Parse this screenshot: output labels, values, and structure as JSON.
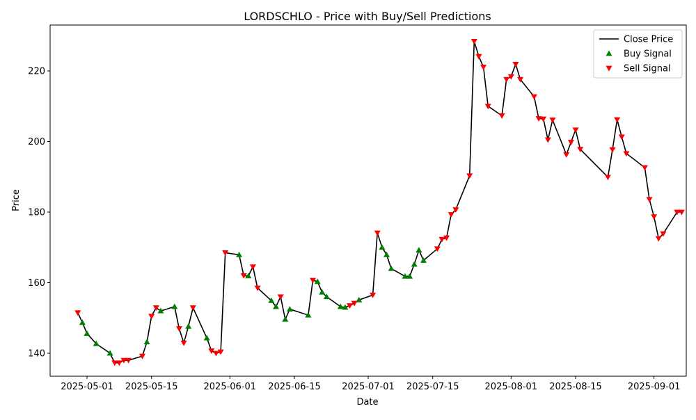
{
  "chart_data": {
    "type": "line",
    "title": "LORDSCHLO - Price with Buy/Sell Predictions",
    "xlabel": "Date",
    "ylabel": "Price",
    "xlim": [
      "2025-04-23",
      "2025-09-08"
    ],
    "ylim": [
      133.5,
      233
    ],
    "x_ticks": [
      "2025-05-01",
      "2025-05-15",
      "2025-06-01",
      "2025-06-15",
      "2025-07-01",
      "2025-07-15",
      "2025-08-01",
      "2025-08-15",
      "2025-09-01"
    ],
    "y_ticks": [
      140,
      160,
      180,
      200,
      220
    ],
    "grid": false,
    "legend_position": "top-right",
    "colors": {
      "close": "#000000",
      "buy": "#008000",
      "sell": "#ff0000"
    },
    "series": [
      {
        "name": "Close Price",
        "marker": "line",
        "x": [
          "2025-04-29",
          "2025-04-30",
          "2025-05-01",
          "2025-05-03",
          "2025-05-06",
          "2025-05-07",
          "2025-05-08",
          "2025-05-09",
          "2025-05-10",
          "2025-05-13",
          "2025-05-14",
          "2025-05-15",
          "2025-05-16",
          "2025-05-17",
          "2025-05-20",
          "2025-05-21",
          "2025-05-22",
          "2025-05-23",
          "2025-05-24",
          "2025-05-27",
          "2025-05-28",
          "2025-05-29",
          "2025-05-30",
          "2025-05-31",
          "2025-06-03",
          "2025-06-04",
          "2025-06-05",
          "2025-06-06",
          "2025-06-07",
          "2025-06-10",
          "2025-06-11",
          "2025-06-12",
          "2025-06-13",
          "2025-06-14",
          "2025-06-18",
          "2025-06-19",
          "2025-06-20",
          "2025-06-21",
          "2025-06-22",
          "2025-06-25",
          "2025-06-26",
          "2025-06-27",
          "2025-06-28",
          "2025-06-29",
          "2025-07-02",
          "2025-07-03",
          "2025-07-04",
          "2025-07-05",
          "2025-07-06",
          "2025-07-09",
          "2025-07-10",
          "2025-07-11",
          "2025-07-12",
          "2025-07-13",
          "2025-07-16",
          "2025-07-17",
          "2025-07-18",
          "2025-07-19",
          "2025-07-20",
          "2025-07-23",
          "2025-07-24",
          "2025-07-25",
          "2025-07-26",
          "2025-07-27",
          "2025-07-30",
          "2025-07-31",
          "2025-08-01",
          "2025-08-02",
          "2025-08-03",
          "2025-08-06",
          "2025-08-07",
          "2025-08-08",
          "2025-08-09",
          "2025-08-10",
          "2025-08-13",
          "2025-08-14",
          "2025-08-15",
          "2025-08-16",
          "2025-08-22",
          "2025-08-23",
          "2025-08-24",
          "2025-08-25",
          "2025-08-26",
          "2025-08-30",
          "2025-08-31",
          "2025-09-01",
          "2025-09-02",
          "2025-09-03",
          "2025-09-06",
          "2025-09-07"
        ],
        "y": [
          151.5,
          148.7,
          145.6,
          142.7,
          140.0,
          137.3,
          137.3,
          138.0,
          138.0,
          139.2,
          143.2,
          150.5,
          152.9,
          152.0,
          153.2,
          147.0,
          142.9,
          147.6,
          152.9,
          144.3,
          140.7,
          140.0,
          140.4,
          168.5,
          167.9,
          162.0,
          161.9,
          164.5,
          158.5,
          154.9,
          153.2,
          156.0,
          149.6,
          152.5,
          150.8,
          160.7,
          160.3,
          157.3,
          156.0,
          153.2,
          153.0,
          153.5,
          154.2,
          155.1,
          156.5,
          174.1,
          170.0,
          167.9,
          164.0,
          161.8,
          161.8,
          165.2,
          169.2,
          166.3,
          169.6,
          172.3,
          172.7,
          179.3,
          180.7,
          190.3,
          228.4,
          224.1,
          221.1,
          210.0,
          207.3,
          217.6,
          218.4,
          221.9,
          217.6,
          212.7,
          206.5,
          206.4,
          200.5,
          206.1,
          196.3,
          199.8,
          203.3,
          197.8,
          189.9,
          197.7,
          206.2,
          201.3,
          196.6,
          192.6,
          183.6,
          178.7,
          172.5,
          173.9,
          180.0,
          180.0
        ]
      },
      {
        "name": "Buy Signal",
        "marker": "triangle-up",
        "x": [
          "2025-04-30",
          "2025-05-01",
          "2025-05-03",
          "2025-05-06",
          "2025-05-14",
          "2025-05-17",
          "2025-05-20",
          "2025-05-23",
          "2025-05-27",
          "2025-06-03",
          "2025-06-05",
          "2025-06-10",
          "2025-06-11",
          "2025-06-13",
          "2025-06-14",
          "2025-06-18",
          "2025-06-20",
          "2025-06-21",
          "2025-06-22",
          "2025-06-25",
          "2025-06-26",
          "2025-06-29",
          "2025-07-04",
          "2025-07-05",
          "2025-07-06",
          "2025-07-09",
          "2025-07-10",
          "2025-07-11",
          "2025-07-12",
          "2025-07-13"
        ],
        "y": [
          148.7,
          145.6,
          142.7,
          140.0,
          143.2,
          152.0,
          153.2,
          147.6,
          144.3,
          167.9,
          161.9,
          154.9,
          153.2,
          149.6,
          152.5,
          150.8,
          160.3,
          157.3,
          156.0,
          153.2,
          153.0,
          155.1,
          170.0,
          167.9,
          164.0,
          161.8,
          161.8,
          165.2,
          169.2,
          166.3
        ]
      },
      {
        "name": "Sell Signal",
        "marker": "triangle-down",
        "x": [
          "2025-04-29",
          "2025-05-07",
          "2025-05-08",
          "2025-05-09",
          "2025-05-10",
          "2025-05-13",
          "2025-05-15",
          "2025-05-16",
          "2025-05-21",
          "2025-05-22",
          "2025-05-24",
          "2025-05-28",
          "2025-05-29",
          "2025-05-30",
          "2025-05-31",
          "2025-06-04",
          "2025-06-06",
          "2025-06-07",
          "2025-06-12",
          "2025-06-19",
          "2025-06-27",
          "2025-06-28",
          "2025-07-02",
          "2025-07-03",
          "2025-07-16",
          "2025-07-17",
          "2025-07-18",
          "2025-07-19",
          "2025-07-20",
          "2025-07-23",
          "2025-07-24",
          "2025-07-25",
          "2025-07-26",
          "2025-07-27",
          "2025-07-30",
          "2025-07-31",
          "2025-08-01",
          "2025-08-02",
          "2025-08-03",
          "2025-08-06",
          "2025-08-07",
          "2025-08-08",
          "2025-08-09",
          "2025-08-10",
          "2025-08-13",
          "2025-08-14",
          "2025-08-15",
          "2025-08-16",
          "2025-08-22",
          "2025-08-23",
          "2025-08-24",
          "2025-08-25",
          "2025-08-26",
          "2025-08-30",
          "2025-08-31",
          "2025-09-01",
          "2025-09-02",
          "2025-09-03",
          "2025-09-06",
          "2025-09-07"
        ],
        "y": [
          151.5,
          137.3,
          137.3,
          138.0,
          138.0,
          139.2,
          150.5,
          152.9,
          147.0,
          142.9,
          152.9,
          140.7,
          140.0,
          140.4,
          168.5,
          162.0,
          164.5,
          158.5,
          156.0,
          160.7,
          153.5,
          154.2,
          156.5,
          174.1,
          169.6,
          172.3,
          172.7,
          179.3,
          180.7,
          190.3,
          228.4,
          224.1,
          221.1,
          210.0,
          207.3,
          217.6,
          218.4,
          221.9,
          217.6,
          212.7,
          206.5,
          206.4,
          200.5,
          206.1,
          196.3,
          199.8,
          203.3,
          197.8,
          189.9,
          197.7,
          206.2,
          201.3,
          196.6,
          192.6,
          183.6,
          178.7,
          172.5,
          173.9,
          180.0,
          180.0
        ]
      }
    ]
  }
}
